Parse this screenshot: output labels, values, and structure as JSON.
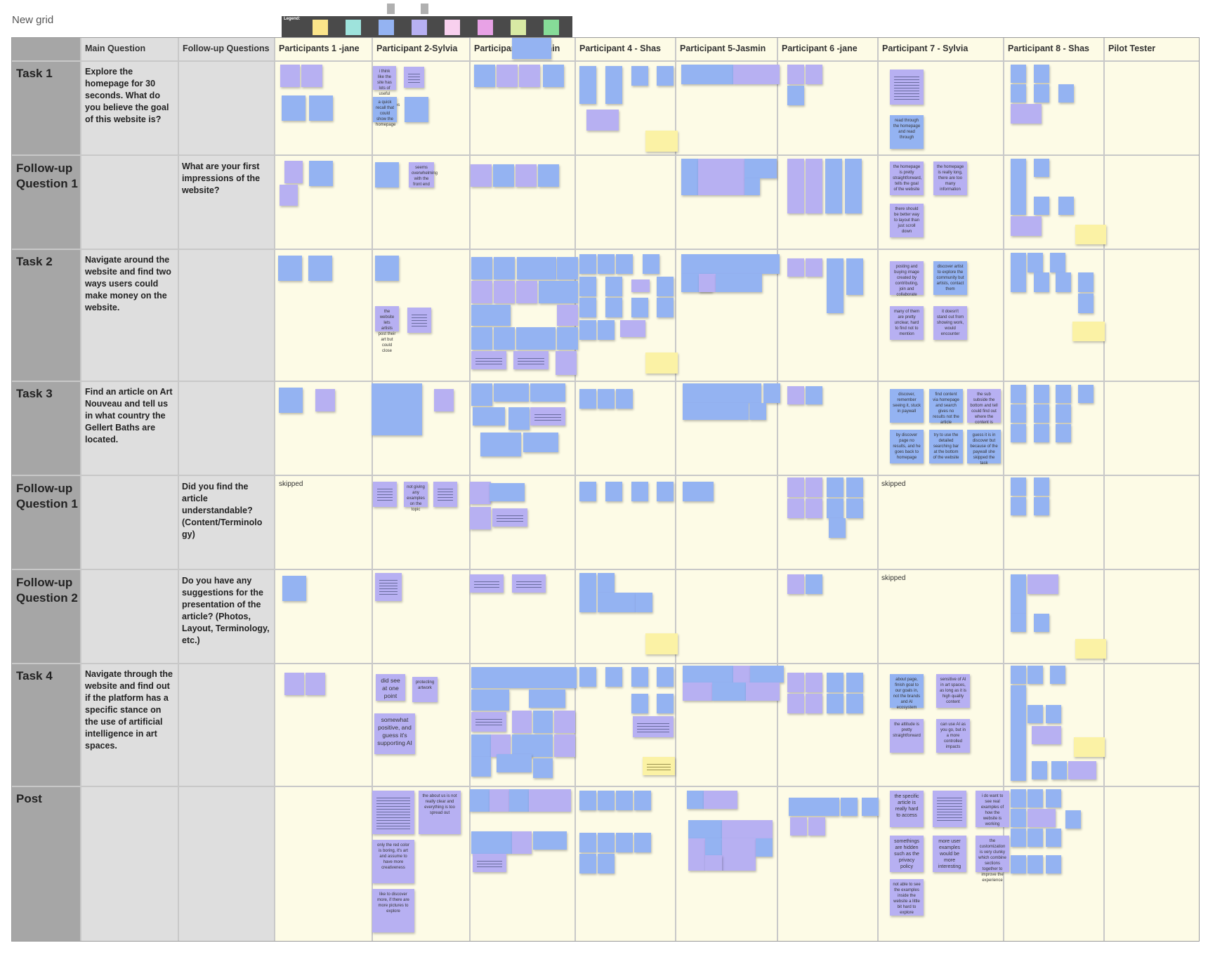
{
  "grid_title": "New grid",
  "legend": {
    "label": "Legend:",
    "colors": [
      "#fbe58a",
      "#9ee3dc",
      "#94b3f2",
      "#b7b0f2",
      "#f8d0ee",
      "#e8a2e6",
      "#d8eaa4",
      "#86dc98"
    ]
  },
  "columns": {
    "main_question": "Main Question",
    "followup_questions": "Follow-up Questions",
    "p1": "Participants 1 -jane",
    "p2": "Participant 2-Sylvia",
    "p3": "Participant 3-Jasmin",
    "p4": "Participant 4 - Shas",
    "p5": "Participant 5-Jasmin",
    "p6": "Participant 6 -jane",
    "p7": "Participant 7 - Sylvia",
    "p8": "Participant 8 - Shas",
    "pilot": "Pilot Tester"
  },
  "rows": {
    "task1": {
      "label": "Task 1",
      "main": "Explore the homepage for 30 seconds. What do you believe the goal of this website is?"
    },
    "fu1a": {
      "label": "Follow-up Question 1",
      "followup": "What are your first impressions of the website?"
    },
    "task2": {
      "label": "Task 2",
      "main": "Navigate around the website and find two ways users could make money on the website."
    },
    "task3": {
      "label": "Task 3",
      "main": "Find an article on Art Nouveau and tell us in what country the Gellert Baths are located."
    },
    "fu1b": {
      "label": "Follow-up Question 1",
      "followup": "Did you find the article understandable? (Content/Terminolo gy)"
    },
    "fu2": {
      "label": "Follow-up Question 2",
      "followup": "Do you have any suggestions for the presentation of the article? (Photos, Layout, Terminology, etc.)"
    },
    "task4": {
      "label": "Task 4",
      "main": "Navigate through the website and find out if the platform has a specific stance on the use of artificial intelligence in art spaces."
    },
    "post": {
      "label": "Post"
    }
  },
  "skipped_text": "skipped",
  "notes": {
    "p2_t4_a": "did see at one point",
    "p2_t4_b": "protecting artwork",
    "p2_t4_c": "somewhat positive, and guess it's supporting AI",
    "p2_post_a": "the about us is not really clear and everything is too spread out",
    "p2_post_b": "only the red color is boring, it's art and assume to have more creativeness",
    "p2_post_c": "like to discover more, if there are more pictures to explore",
    "p7_t1": "read through the homepage and read through",
    "p7_fu1_a": "the homepage is pretty straightforward, tells the goal of the website",
    "p7_fu1_b": "the homepage is really long, there are too many information",
    "p7_fu1_c": "there should be better way to layout than just scroll down",
    "p7_t2_a": "posting and buying image created by contributing, join and collaborate",
    "p7_t2_b": "discover artist to explore the community but artists, contact them",
    "p7_t2_c": "many of them are pretty unclear, hard to find not to mention",
    "p7_t2_d": "it doesn't stand out from showing work, would encounter",
    "p7_t3_a": "discover, remember seeing it, stuck in paywall",
    "p7_t3_b": "find content via homepage and search gives no results not the article",
    "p7_t3_c": "the sub subside the bottom and tell could find out where the content is",
    "p7_t3_d": "by discover page no results, and he goes back to homepage",
    "p7_t3_e": "try to use the detailed searching bar at the bottom of the website",
    "p7_t3_f": "guess it is in discover but because of the paywall she skipped the task",
    "p7_t4_a": "about page, finish goal to our goals in, not the brands and AI ecosystem",
    "p7_t4_b": "sensitive of AI in art spaces, as long as it is high quality content",
    "p7_t4_c": "the attitude is pretty straightforward",
    "p7_t4_d": "can use AI as you go, but in a more controlled impacts",
    "p7_post_a": "the specific article is really hard to access",
    "p7_post_c": "i do want to see real examples of how the website is working",
    "p7_post_d": "somethings are hidden such as the privacy policy",
    "p7_post_e": "more user examples would be more interesting",
    "p7_post_f": "the customization is very clunky which combine sections together to improve the experience",
    "p7_post_g": "not able to see the examples inside the website a little bit hard to explore",
    "p2_t1_a": "i think like the site has lots of useful big opportunities",
    "p2_t1_b": "a quick recall that could show the homepage",
    "p2_fu1_b": "seems overwhelming with the front end",
    "p2_t2_a": "the website lets artists post their art but could close",
    "p2_fu1b_b": "not giving any examples on the topic"
  }
}
